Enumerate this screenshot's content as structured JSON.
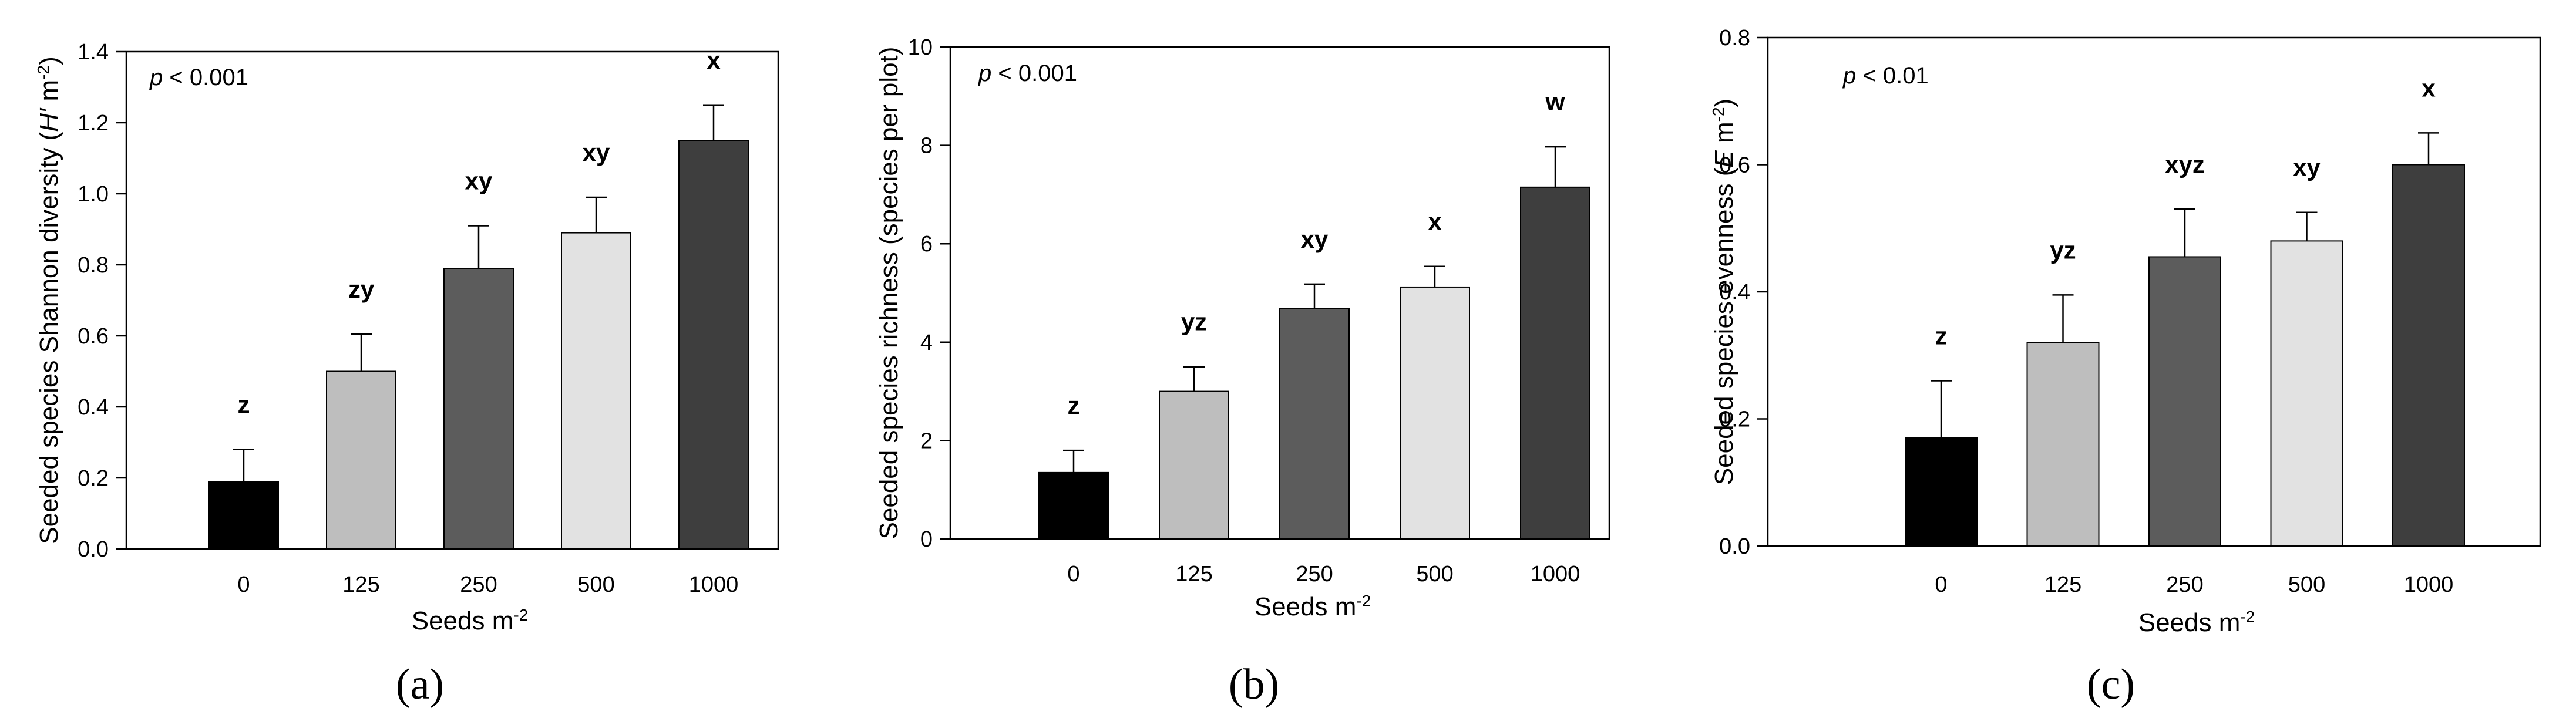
{
  "chart_data": [
    {
      "type": "bar",
      "panel_label": "(a)",
      "categories": [
        "0",
        "125",
        "250",
        "500",
        "1000"
      ],
      "values": [
        0.19,
        0.5,
        0.79,
        0.89,
        1.15
      ],
      "errors": [
        0.09,
        0.105,
        0.12,
        0.1,
        0.1
      ],
      "significance": [
        "z",
        "zy",
        "xy",
        "xy",
        "x"
      ],
      "bar_colors": [
        "#000000",
        "#bebebe",
        "#5c5c5c",
        "#e2e2e2",
        "#3e3e3e"
      ],
      "ylim": [
        0,
        1.4
      ],
      "yticks": [
        "0.0",
        "0.2",
        "0.4",
        "0.6",
        "0.8",
        "1.0",
        "1.2",
        "1.4"
      ],
      "ylabel": "Seeded species Shannon diversity (H′ m-2)",
      "ylabel_parts": {
        "main": "Seeded species Shannon diversity (",
        "italic": "H′",
        "unit": " m",
        "sup": "-2",
        "close": ")"
      },
      "xlabel_parts": {
        "main": "Seeds m",
        "sup": "-2"
      },
      "ptext": {
        "italic": "p",
        "rest": " <  0.001"
      }
    },
    {
      "type": "bar",
      "panel_label": "(b)",
      "categories": [
        "0",
        "125",
        "250",
        "500",
        "1000"
      ],
      "values": [
        1.35,
        3.0,
        4.68,
        5.12,
        7.15
      ],
      "errors": [
        0.45,
        0.5,
        0.5,
        0.42,
        0.82
      ],
      "significance": [
        "z",
        "yz",
        "xy",
        "x",
        "w"
      ],
      "bar_colors": [
        "#000000",
        "#bebebe",
        "#5c5c5c",
        "#e2e2e2",
        "#3e3e3e"
      ],
      "ylim": [
        0,
        10
      ],
      "yticks": [
        "0",
        "2",
        "4",
        "6",
        "8",
        "10"
      ],
      "ylabel": "Seeded species richness (species per plot)",
      "ylabel_parts": {
        "main": "Seeded species richness (species per plot)",
        "italic": "",
        "unit": "",
        "sup": "",
        "close": ""
      },
      "xlabel_parts": {
        "main": "Seeds m",
        "sup": "-2"
      },
      "ptext": {
        "italic": "p",
        "rest": " < 0.001"
      }
    },
    {
      "type": "bar",
      "panel_label": "(c)",
      "categories": [
        "0",
        "125",
        "250",
        "500",
        "1000"
      ],
      "values": [
        0.17,
        0.32,
        0.455,
        0.48,
        0.6
      ],
      "errors": [
        0.09,
        0.075,
        0.075,
        0.045,
        0.05
      ],
      "significance": [
        "z",
        "yz",
        "xyz",
        "xy",
        "x"
      ],
      "bar_colors": [
        "#000000",
        "#bebebe",
        "#5c5c5c",
        "#e2e2e2",
        "#3e3e3e"
      ],
      "ylim": [
        0,
        0.8
      ],
      "yticks": [
        "0.0",
        "0.2",
        "0.4",
        "0.6",
        "0.8"
      ],
      "ylabel": "Seeded species evenness (E m-2)",
      "ylabel_parts": {
        "main": "Seeded species evenness (",
        "italic": "E",
        "unit": " m",
        "sup": "-2",
        "close": ")"
      },
      "xlabel_parts": {
        "main": "Seeds m",
        "sup": "-2"
      },
      "ptext": {
        "italic": "p",
        "rest": " < 0.01"
      }
    }
  ]
}
